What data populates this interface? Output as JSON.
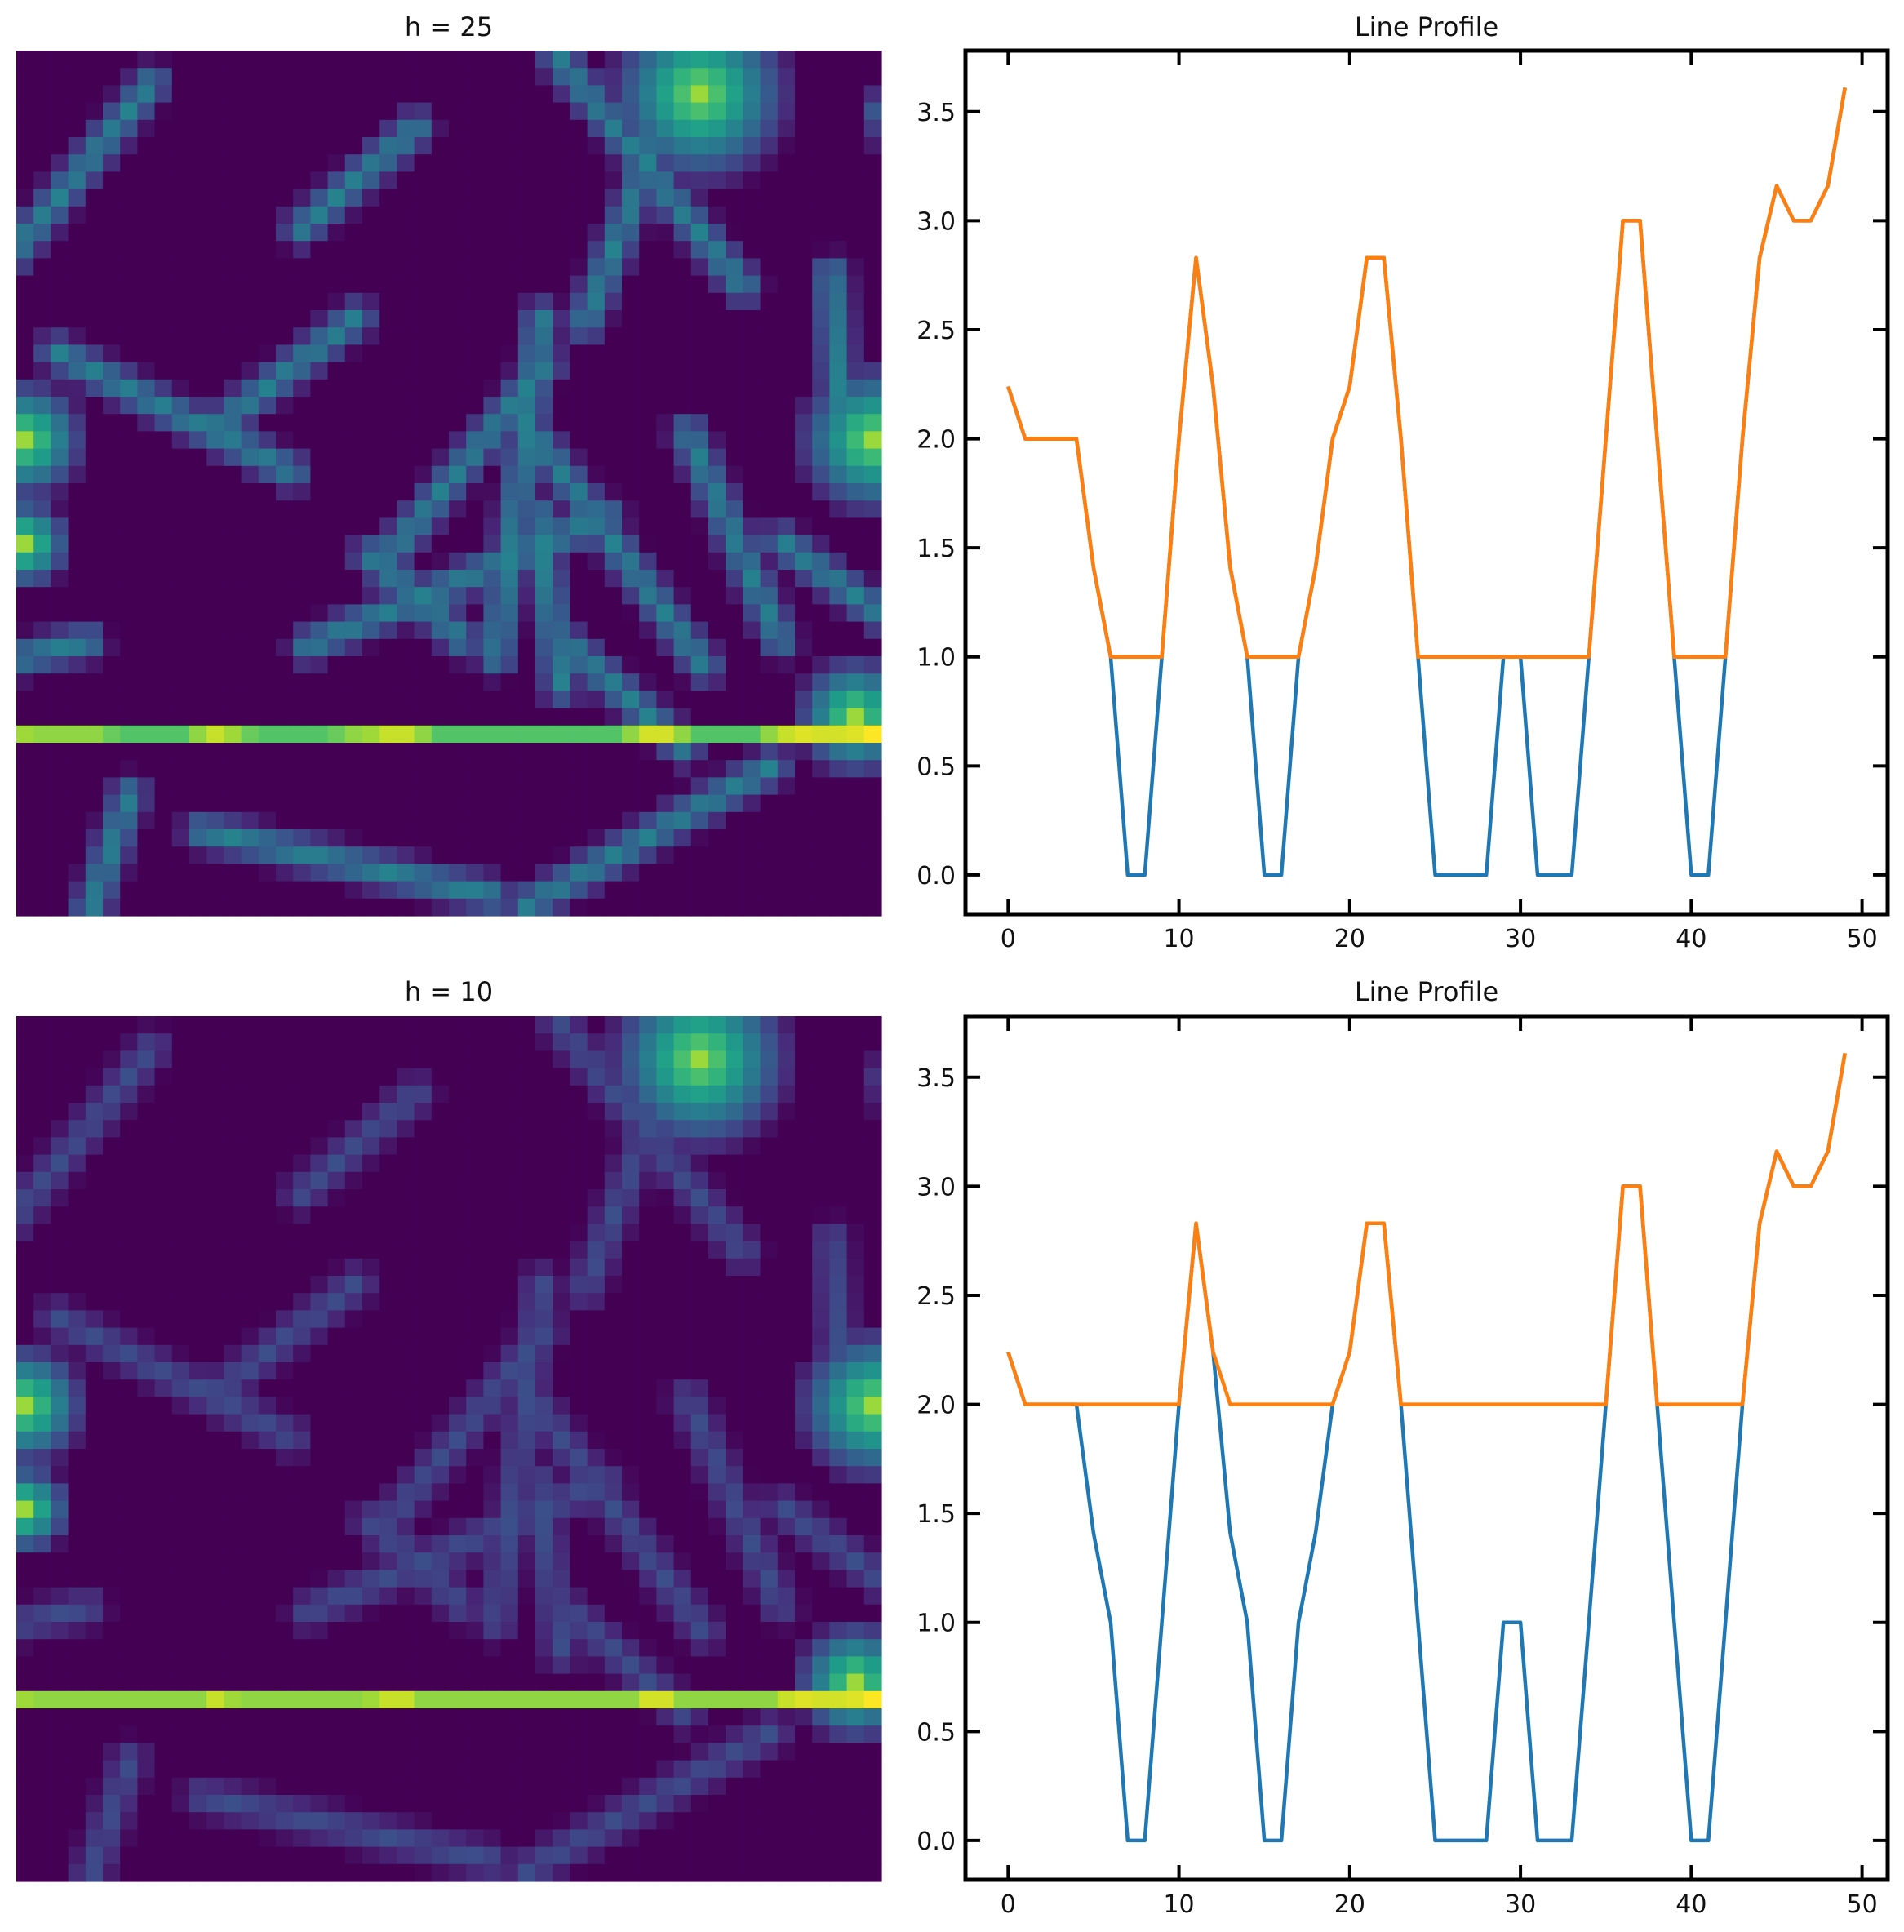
{
  "chart_data": [
    {
      "type": "heatmap",
      "title": "h = 25",
      "colormap": "viridis",
      "grid_size": [
        50,
        50
      ],
      "highlight_row": 39,
      "axes_visible": false
    },
    {
      "type": "line",
      "title": "Line Profile",
      "xlim": [
        -2.5,
        51.5
      ],
      "ylim": [
        -0.18,
        3.78
      ],
      "xticks": [
        "0",
        "10",
        "20",
        "30",
        "40",
        "50"
      ],
      "yticks": [
        "0.0",
        "0.5",
        "1.0",
        "1.5",
        "2.0",
        "2.5",
        "3.0",
        "3.5"
      ],
      "x": [
        0,
        1,
        2,
        3,
        4,
        5,
        6,
        7,
        8,
        9,
        10,
        11,
        12,
        13,
        14,
        15,
        16,
        17,
        18,
        19,
        20,
        21,
        22,
        23,
        24,
        25,
        26,
        27,
        28,
        29,
        30,
        31,
        32,
        33,
        34,
        35,
        36,
        37,
        38,
        39,
        40,
        41,
        42,
        43,
        44,
        45,
        46,
        47,
        48,
        49
      ],
      "series": [
        {
          "color": "#1f77b4",
          "values": [
            2.24,
            2,
            2,
            2,
            2,
            1.41,
            1,
            0,
            0,
            1,
            2,
            2.83,
            2.24,
            1.41,
            1,
            0,
            0,
            1,
            1.41,
            2,
            2.24,
            2.83,
            2.83,
            2,
            1,
            0,
            0,
            0,
            0,
            1,
            1,
            0,
            0,
            0,
            1,
            2,
            3,
            3,
            2,
            1,
            0,
            0,
            1,
            2,
            2.83,
            3.16,
            3,
            3,
            3.16,
            3.61
          ]
        },
        {
          "color": "#ff7f0e",
          "values": [
            2.24,
            2,
            2,
            2,
            2,
            1.41,
            1,
            1,
            1,
            1,
            2,
            2.83,
            2.24,
            1.41,
            1,
            1,
            1,
            1,
            1.41,
            2,
            2.24,
            2.83,
            2.83,
            2,
            1,
            1,
            1,
            1,
            1,
            1,
            1,
            1,
            1,
            1,
            1,
            2,
            3,
            3,
            2,
            1,
            1,
            1,
            1,
            2,
            2.83,
            3.16,
            3,
            3,
            3.16,
            3.61
          ]
        }
      ]
    },
    {
      "type": "heatmap",
      "title": "h = 10",
      "colormap": "viridis",
      "grid_size": [
        50,
        50
      ],
      "highlight_row": 39,
      "axes_visible": false
    },
    {
      "type": "line",
      "title": "Line Profile",
      "xlim": [
        -2.5,
        51.5
      ],
      "ylim": [
        -0.18,
        3.78
      ],
      "xticks": [
        "0",
        "10",
        "20",
        "30",
        "40",
        "50"
      ],
      "yticks": [
        "0.0",
        "0.5",
        "1.0",
        "1.5",
        "2.0",
        "2.5",
        "3.0",
        "3.5"
      ],
      "x": [
        0,
        1,
        2,
        3,
        4,
        5,
        6,
        7,
        8,
        9,
        10,
        11,
        12,
        13,
        14,
        15,
        16,
        17,
        18,
        19,
        20,
        21,
        22,
        23,
        24,
        25,
        26,
        27,
        28,
        29,
        30,
        31,
        32,
        33,
        34,
        35,
        36,
        37,
        38,
        39,
        40,
        41,
        42,
        43,
        44,
        45,
        46,
        47,
        48,
        49
      ],
      "series": [
        {
          "color": "#1f77b4",
          "values": [
            2.24,
            2,
            2,
            2,
            2,
            1.41,
            1,
            0,
            0,
            1,
            2,
            2.83,
            2.24,
            1.41,
            1,
            0,
            0,
            1,
            1.41,
            2,
            2.24,
            2.83,
            2.83,
            2,
            1,
            0,
            0,
            0,
            0,
            1,
            1,
            0,
            0,
            0,
            1,
            2,
            3,
            3,
            2,
            1,
            0,
            0,
            1,
            2,
            2.83,
            3.16,
            3,
            3,
            3.16,
            3.61
          ]
        },
        {
          "color": "#ff7f0e",
          "values": [
            2.24,
            2,
            2,
            2,
            2,
            2,
            2,
            2,
            2,
            2,
            2,
            2.83,
            2.24,
            2,
            2,
            2,
            2,
            2,
            2,
            2,
            2.24,
            2.83,
            2.83,
            2,
            2,
            2,
            2,
            2,
            2,
            2,
            2,
            2,
            2,
            2,
            2,
            2,
            3,
            3,
            2,
            2,
            2,
            2,
            2,
            2,
            2.83,
            3.16,
            3,
            3,
            3.16,
            3.61
          ]
        }
      ]
    }
  ]
}
